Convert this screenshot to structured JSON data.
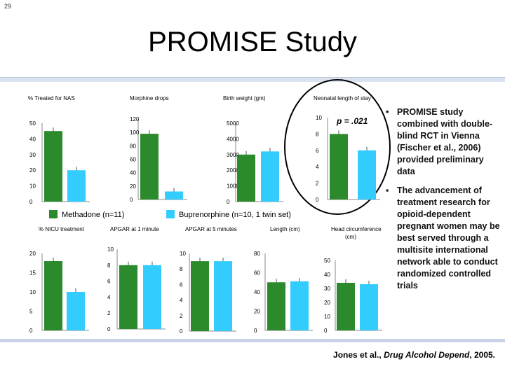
{
  "slide_number": "29",
  "title": "PROMISE Study",
  "legend": {
    "methadone_label": "Methadone (n=11)",
    "buprenorphine_label": "Buprenorphine (n=10, 1 twin set)"
  },
  "colors": {
    "methadone": "#2b8a2b",
    "buprenorphine": "#33ccff",
    "highlight": "#000000"
  },
  "annotation": "p = .021",
  "bullets": [
    "PROMISE study combined with double-blind RCT in Vienna (Fischer et al., 2006) provided preliminary data",
    "The advancement of treatment research for opioid-dependent pregnant women may be best served through a multisite international network able to conduct randomized controlled trials"
  ],
  "citation": {
    "authors": "Jones et al., ",
    "journal": "Drug Alcohol Depend",
    "year": ", 2005."
  },
  "chart_data": [
    {
      "type": "bar",
      "title": "% Treated for NAS",
      "yticks": [
        "50",
        "40",
        "30",
        "20",
        "10",
        "0"
      ],
      "ylim": [
        0,
        50
      ],
      "series": [
        {
          "name": "Methadone",
          "values": [
            45
          ]
        },
        {
          "name": "Buprenorphine",
          "values": [
            20
          ]
        }
      ]
    },
    {
      "type": "bar",
      "title": "Morphine drops",
      "yticks": [
        "120",
        "100",
        "80",
        "60",
        "40",
        "20",
        "0"
      ],
      "ylim": [
        0,
        120
      ],
      "series": [
        {
          "name": "Methadone",
          "values": [
            98
          ]
        },
        {
          "name": "Buprenorphine",
          "values": [
            12
          ]
        }
      ]
    },
    {
      "type": "bar",
      "title": "Birth weight (gm)",
      "yticks": [
        "5000",
        "4000",
        "3000",
        "2000",
        "1000",
        "0"
      ],
      "ylim": [
        0,
        5000
      ],
      "series": [
        {
          "name": "Methadone",
          "values": [
            3000
          ]
        },
        {
          "name": "Buprenorphine",
          "values": [
            3200
          ]
        }
      ]
    },
    {
      "type": "bar",
      "title": "Neonatal length of stay",
      "yticks": [
        "10",
        "8",
        "6",
        "4",
        "2",
        "0"
      ],
      "ylim": [
        0,
        10
      ],
      "series": [
        {
          "name": "Methadone",
          "values": [
            8
          ]
        },
        {
          "name": "Buprenorphine",
          "values": [
            6
          ]
        }
      ]
    },
    {
      "type": "bar",
      "title": "% NICU treatment",
      "yticks": [
        "20",
        "15",
        "10",
        "5",
        "0"
      ],
      "ylim": [
        0,
        20
      ],
      "series": [
        {
          "name": "Methadone",
          "values": [
            18
          ]
        },
        {
          "name": "Buprenorphine",
          "values": [
            10
          ]
        }
      ]
    },
    {
      "type": "bar",
      "title": "APGAR at 1 minute",
      "yticks": [
        "10",
        "8",
        "6",
        "4",
        "2",
        "0"
      ],
      "ylim": [
        0,
        10
      ],
      "series": [
        {
          "name": "Methadone",
          "values": [
            8
          ]
        },
        {
          "name": "Buprenorphine",
          "values": [
            8
          ]
        }
      ]
    },
    {
      "type": "bar",
      "title": "APGAR at 5 minutes",
      "yticks": [
        "10",
        "8",
        "6",
        "4",
        "2",
        "0"
      ],
      "ylim": [
        0,
        10
      ],
      "series": [
        {
          "name": "Methadone",
          "values": [
            9
          ]
        },
        {
          "name": "Buprenorphine",
          "values": [
            9
          ]
        }
      ]
    },
    {
      "type": "bar",
      "title": "Length (cm)",
      "yticks": [
        "80",
        "60",
        "40",
        "20",
        "0"
      ],
      "ylim": [
        0,
        80
      ],
      "series": [
        {
          "name": "Methadone",
          "values": [
            50
          ]
        },
        {
          "name": "Buprenorphine",
          "values": [
            51
          ]
        }
      ]
    },
    {
      "type": "bar",
      "title": "Head circumference (cm)",
      "yticks": [
        "50",
        "40",
        "30",
        "20",
        "10",
        "0"
      ],
      "ylim": [
        0,
        50
      ],
      "series": [
        {
          "name": "Methadone",
          "values": [
            34
          ]
        },
        {
          "name": "Buprenorphine",
          "values": [
            33
          ]
        }
      ]
    }
  ]
}
